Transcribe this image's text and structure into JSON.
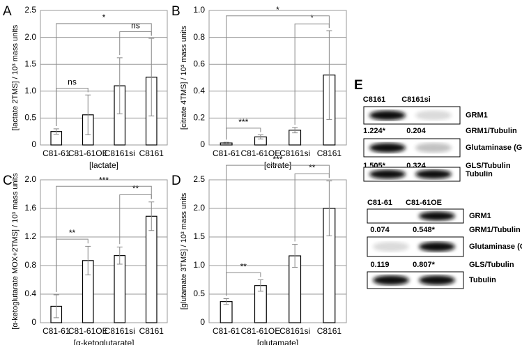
{
  "chart_data": [
    {
      "type": "bar",
      "label": "A",
      "ylabel": "[lactate 2TMS] / 10³ mass units",
      "xlabel": "[lactate]",
      "categories": [
        "C81-61",
        "C81-61OE",
        "C8161si",
        "C8161"
      ],
      "values": [
        0.25,
        0.56,
        1.1,
        1.26
      ],
      "errors": [
        0.05,
        0.37,
        0.52,
        0.72
      ],
      "ylim": [
        0,
        2.5
      ],
      "yticks": [
        0,
        0.5,
        {
          "value": 1,
          "label": "1.0"
        },
        1.5,
        {
          "value": 2,
          "label": "2.0"
        },
        2.5
      ],
      "grid": true,
      "significance": [
        {
          "between": [
            "C81-61",
            "C81-61OE"
          ],
          "label": "ns"
        },
        {
          "between": [
            "C8161si",
            "C8161"
          ],
          "label": "ns"
        },
        {
          "between": [
            "C81-61",
            "C8161"
          ],
          "label": "*"
        }
      ]
    },
    {
      "type": "bar",
      "label": "B",
      "ylabel": "[citrate 4TMS] / 10³ mass units",
      "xlabel": "[citrate]",
      "categories": [
        "C81-61",
        "C81-61OE",
        "C8161si",
        "C8161"
      ],
      "values": [
        0.015,
        0.06,
        0.11,
        0.52
      ],
      "errors": [
        0.005,
        0.015,
        0.02,
        0.33
      ],
      "ylim": [
        0,
        1
      ],
      "yticks": [
        0,
        0.2,
        0.4,
        0.6,
        0.8,
        {
          "value": 1,
          "label": "1.0"
        }
      ],
      "grid": true,
      "significance": [
        {
          "between": [
            "C81-61",
            "C81-61OE"
          ],
          "label": "***"
        },
        {
          "between": [
            "C8161si",
            "C8161"
          ],
          "label": "*"
        },
        {
          "between": [
            "C81-61",
            "C8161"
          ],
          "label": "*"
        }
      ]
    },
    {
      "type": "bar",
      "label": "C",
      "ylabel": "[α-ketoglutarate MOX+2TMS] / 10³ mass units",
      "xlabel": "[α-ketoglutarate]",
      "categories": [
        "C81-61",
        "C81-61OE",
        "C8161si",
        "C8161"
      ],
      "values": [
        0.23,
        0.87,
        0.94,
        1.49
      ],
      "errors": [
        0.16,
        0.2,
        0.12,
        0.2
      ],
      "ylim": [
        0,
        2
      ],
      "yticks": [
        0,
        0.4,
        0.8,
        1.2,
        1.6,
        {
          "value": 2,
          "label": "2.0"
        }
      ],
      "grid": true,
      "significance": [
        {
          "between": [
            "C81-61",
            "C81-61OE"
          ],
          "label": "**"
        },
        {
          "between": [
            "C8161si",
            "C8161"
          ],
          "label": "**"
        },
        {
          "between": [
            "C81-61",
            "C8161"
          ],
          "label": "***"
        }
      ]
    },
    {
      "type": "bar",
      "label": "D",
      "ylabel": "[glutamate 3TMS] / 10³ mass units",
      "xlabel": "[glutamate]",
      "categories": [
        "C81-61",
        "C81-61OE",
        "C8161si",
        "C8161"
      ],
      "values": [
        0.37,
        0.65,
        1.17,
        2.0
      ],
      "errors": [
        0.05,
        0.1,
        0.2,
        0.48
      ],
      "ylim": [
        0,
        2.5
      ],
      "yticks": [
        0,
        0.5,
        {
          "value": 1,
          "label": "1.0"
        },
        1.5,
        {
          "value": 2,
          "label": "2.0"
        },
        2.5
      ],
      "grid": true,
      "significance": [
        {
          "between": [
            "C81-61",
            "C81-61OE"
          ],
          "label": "**"
        },
        {
          "between": [
            "C8161si",
            "C8161"
          ],
          "label": "**"
        },
        {
          "between": [
            "C81-61",
            "C8161"
          ],
          "label": "***"
        }
      ]
    }
  ],
  "blots": {
    "label": "E",
    "groups": [
      {
        "columns": [
          "C8161",
          "C8161si"
        ],
        "rows": [
          {
            "name": "GRM1",
            "ratio_label": "GRM1/Tubulin",
            "ratios": [
              "1.224*",
              "0.204"
            ]
          },
          {
            "name": "Glutaminase (GLS)",
            "ratio_label": "GLS/Tubulin",
            "ratios": [
              "1.505*",
              "0.324"
            ]
          },
          {
            "name": "Tubulin"
          }
        ]
      },
      {
        "columns": [
          "C81-61",
          "C81-61OE"
        ],
        "rows": [
          {
            "name": "GRM1",
            "ratio_label": "GRM1/Tubulin",
            "ratios": [
              "0.074",
              "0.548*"
            ]
          },
          {
            "name": "Glutaminase (GLS)",
            "ratio_label": "GLS/Tubulin",
            "ratios": [
              "0.119",
              "0.807*"
            ]
          },
          {
            "name": "Tubulin"
          }
        ]
      }
    ]
  }
}
